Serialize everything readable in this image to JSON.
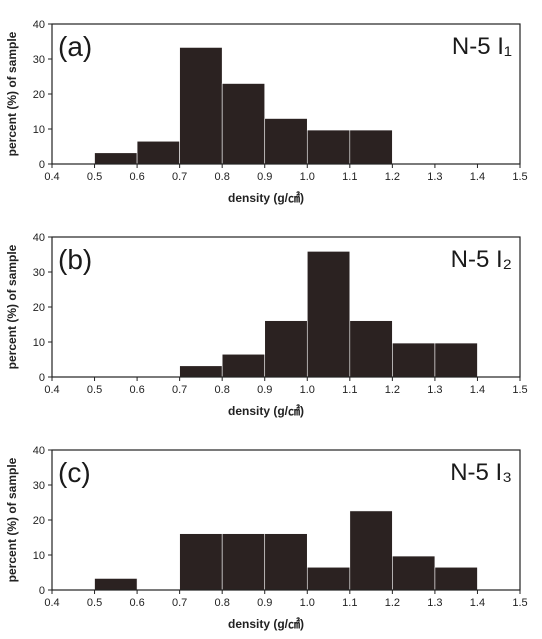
{
  "chart_data": [
    {
      "type": "bar",
      "panel_label": "(a)",
      "sample_label": "N-5 I₁",
      "xlabel": "density (g/㎠)",
      "ylabel": "percent (%) of sample",
      "xlim": [
        0.4,
        1.5
      ],
      "ylim": [
        0,
        40
      ],
      "xticks": [
        "0.4",
        "0.5",
        "0.6",
        "0.7",
        "0.8",
        "0.9",
        "1.0",
        "1.1",
        "1.2",
        "1.3",
        "1.4",
        "1.5"
      ],
      "yticks": [
        "0",
        "10",
        "20",
        "30",
        "40"
      ],
      "bins": [
        {
          "x0": 0.5,
          "x1": 0.6,
          "value": 3.2
        },
        {
          "x0": 0.6,
          "x1": 0.7,
          "value": 6.5
        },
        {
          "x0": 0.7,
          "x1": 0.8,
          "value": 33.3
        },
        {
          "x0": 0.8,
          "x1": 0.9,
          "value": 23.0
        },
        {
          "x0": 0.9,
          "x1": 1.0,
          "value": 13.0
        },
        {
          "x0": 1.0,
          "x1": 1.1,
          "value": 9.7
        },
        {
          "x0": 1.1,
          "x1": 1.2,
          "value": 9.7
        }
      ]
    },
    {
      "type": "bar",
      "panel_label": "(b)",
      "sample_label": "N-5 I₂",
      "xlabel": "density (g/㎠)",
      "ylabel": "percent (%) of sample",
      "xlim": [
        0.4,
        1.5
      ],
      "ylim": [
        0,
        40
      ],
      "xticks": [
        "0.4",
        "0.5",
        "0.6",
        "0.7",
        "0.8",
        "0.9",
        "1.0",
        "1.1",
        "1.2",
        "1.3",
        "1.4",
        "1.5"
      ],
      "yticks": [
        "0",
        "10",
        "20",
        "30",
        "40"
      ],
      "bins": [
        {
          "x0": 0.7,
          "x1": 0.8,
          "value": 3.2
        },
        {
          "x0": 0.8,
          "x1": 0.9,
          "value": 6.5
        },
        {
          "x0": 0.9,
          "x1": 1.0,
          "value": 16.1
        },
        {
          "x0": 1.0,
          "x1": 1.1,
          "value": 35.9
        },
        {
          "x0": 1.1,
          "x1": 1.2,
          "value": 16.1
        },
        {
          "x0": 1.2,
          "x1": 1.3,
          "value": 9.7
        },
        {
          "x0": 1.3,
          "x1": 1.4,
          "value": 9.7
        }
      ]
    },
    {
      "type": "bar",
      "panel_label": "(c)",
      "sample_label": "N-5 I₃",
      "xlabel": "density (g/㎠)",
      "ylabel": "percent (%) of sample",
      "xlim": [
        0.4,
        1.5
      ],
      "ylim": [
        0,
        40
      ],
      "xticks": [
        "0.4",
        "0.5",
        "0.6",
        "0.7",
        "0.8",
        "0.9",
        "1.0",
        "1.1",
        "1.2",
        "1.3",
        "1.4",
        "1.5"
      ],
      "yticks": [
        "0",
        "10",
        "20",
        "30",
        "40"
      ],
      "bins": [
        {
          "x0": 0.5,
          "x1": 0.6,
          "value": 3.3
        },
        {
          "x0": 0.7,
          "x1": 0.8,
          "value": 16.1
        },
        {
          "x0": 0.8,
          "x1": 0.9,
          "value": 16.1
        },
        {
          "x0": 0.9,
          "x1": 1.0,
          "value": 16.1
        },
        {
          "x0": 1.0,
          "x1": 1.1,
          "value": 6.5
        },
        {
          "x0": 1.1,
          "x1": 1.2,
          "value": 22.6
        },
        {
          "x0": 1.2,
          "x1": 1.3,
          "value": 9.7
        },
        {
          "x0": 1.3,
          "x1": 1.4,
          "value": 6.5
        }
      ]
    }
  ],
  "colors": {
    "bar_fill": "#2b2221",
    "axis": "#222222",
    "background": "#ffffff"
  }
}
